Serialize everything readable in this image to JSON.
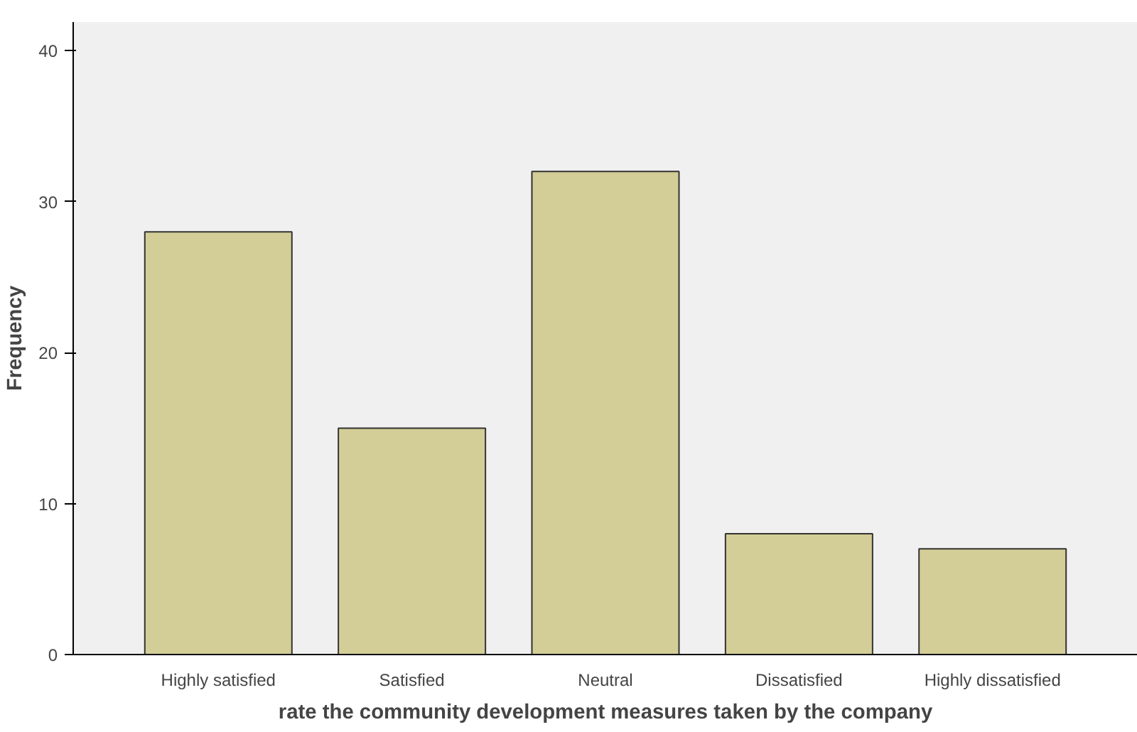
{
  "chart_data": {
    "type": "bar",
    "categories": [
      "Highly satisfied",
      "Satisfied",
      "Neutral",
      "Dissatisfied",
      "Highly dissatisfied"
    ],
    "values": [
      28,
      15,
      32,
      8,
      7
    ],
    "color": "#d3ce97",
    "xlabel": "rate the community development measures taken by the company",
    "ylabel": "Frequency",
    "ylim": [
      0,
      41.9
    ],
    "yticks": [
      0,
      10,
      20,
      30,
      40
    ],
    "grid": false
  }
}
